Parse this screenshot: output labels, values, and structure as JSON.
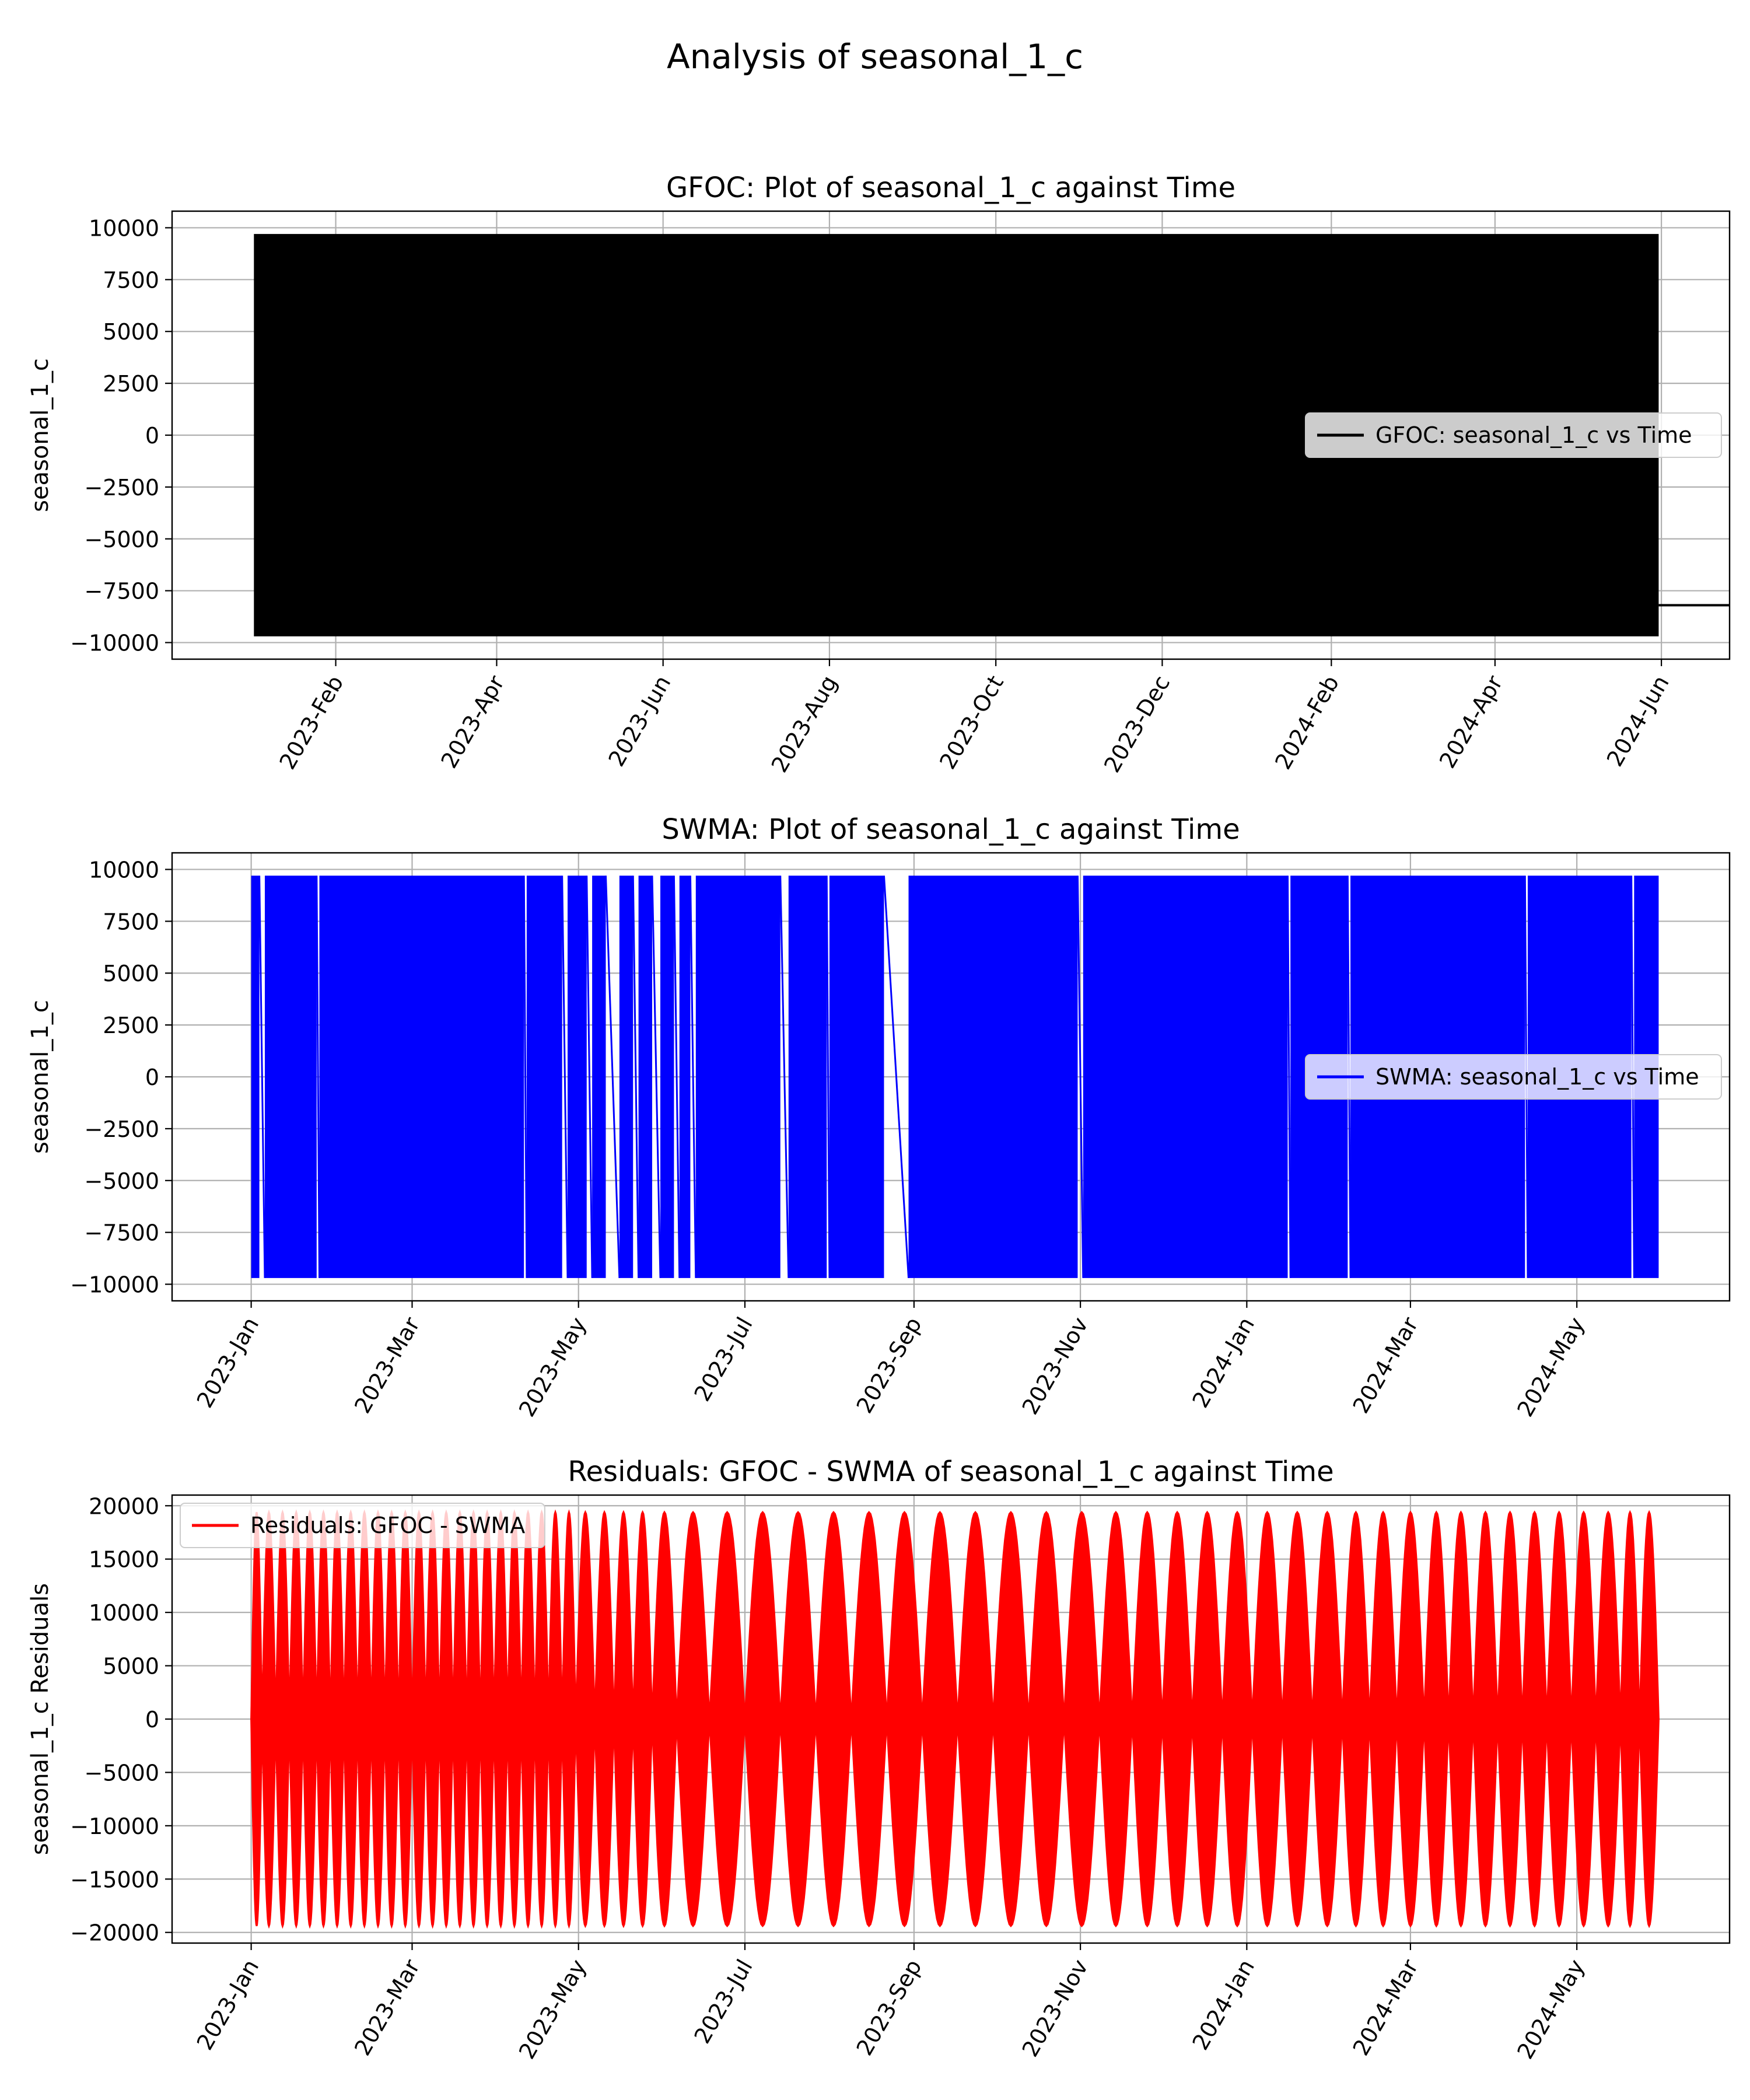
{
  "figure": {
    "title": "Analysis of seasonal_1_c"
  },
  "chart_data": [
    {
      "type": "line",
      "title": "GFOC: Plot of seasonal_1_c against Time",
      "xlabel": "",
      "ylabel": "seasonal_1_c",
      "ylim": [
        -10800,
        10800
      ],
      "xlim": [
        "2022-12-03",
        "2024-06-26"
      ],
      "grid": true,
      "legend": "center-right",
      "color": "#000000",
      "series": [
        {
          "name": "GFOC: seasonal_1_c vs Time",
          "envelope": {
            "x_start": "2023-01-02",
            "x_end": "2024-05-31",
            "ymin": -9700,
            "ymax": 9700
          },
          "tail": {
            "x": [
              "2024-05-31",
              "2024-06-30"
            ],
            "y": [
              -8200,
              -8200
            ]
          }
        }
      ],
      "x_ticks": [
        "2023-Feb",
        "2023-Apr",
        "2023-Jun",
        "2023-Aug",
        "2023-Oct",
        "2023-Dec",
        "2024-Feb",
        "2024-Apr",
        "2024-Jun"
      ],
      "x_tick_dates": [
        "2023-02-01",
        "2023-04-01",
        "2023-06-01",
        "2023-08-01",
        "2023-10-01",
        "2023-12-01",
        "2024-02-01",
        "2024-04-01",
        "2024-06-01"
      ],
      "y_ticks": [
        "10000",
        "7500",
        "5000",
        "2500",
        "0",
        "−2500",
        "−5000",
        "−7500",
        "−10000"
      ],
      "y_tick_values": [
        10000,
        7500,
        5000,
        2500,
        0,
        -2500,
        -5000,
        -7500,
        -10000
      ]
    },
    {
      "type": "line",
      "title": "SWMA: Plot of seasonal_1_c against Time",
      "xlabel": "",
      "ylabel": "seasonal_1_c",
      "ylim": [
        -10800,
        10800
      ],
      "xlim": [
        "2022-12-03",
        "2024-06-26"
      ],
      "grid": true,
      "legend": "center-right",
      "color": "#0000ff",
      "series": [
        {
          "name": "SWMA: seasonal_1_c vs Time",
          "bands": [
            [
              "2023-01-01",
              "2023-01-04"
            ],
            [
              "2023-01-06",
              "2023-01-25"
            ],
            [
              "2023-01-26",
              "2023-04-11"
            ],
            [
              "2023-04-12",
              "2023-04-25"
            ],
            [
              "2023-04-27",
              "2023-05-04"
            ],
            [
              "2023-05-06",
              "2023-05-11"
            ],
            [
              "2023-05-16",
              "2023-05-21"
            ],
            [
              "2023-05-23",
              "2023-05-28"
            ],
            [
              "2023-05-31",
              "2023-06-05"
            ],
            [
              "2023-06-07",
              "2023-06-11"
            ],
            [
              "2023-06-13",
              "2023-07-14"
            ],
            [
              "2023-07-17",
              "2023-07-31"
            ],
            [
              "2023-08-01",
              "2023-08-21"
            ],
            [
              "2023-08-30",
              "2023-10-31"
            ],
            [
              "2023-11-02",
              "2024-01-16"
            ],
            [
              "2024-01-17",
              "2024-02-07"
            ],
            [
              "2024-02-08",
              "2024-04-12"
            ],
            [
              "2024-04-13",
              "2024-05-21"
            ],
            [
              "2024-05-22",
              "2024-05-31"
            ]
          ],
          "ymin": -9700,
          "ymax": 9700
        }
      ],
      "x_ticks": [
        "2023-Jan",
        "2023-Mar",
        "2023-May",
        "2023-Jul",
        "2023-Sep",
        "2023-Nov",
        "2024-Jan",
        "2024-Mar",
        "2024-May"
      ],
      "x_tick_dates": [
        "2023-01-01",
        "2023-03-01",
        "2023-05-01",
        "2023-07-01",
        "2023-09-01",
        "2023-11-01",
        "2024-01-01",
        "2024-03-01",
        "2024-05-01"
      ],
      "y_ticks": [
        "10000",
        "7500",
        "5000",
        "2500",
        "0",
        "−2500",
        "−5000",
        "−7500",
        "−10000"
      ],
      "y_tick_values": [
        10000,
        7500,
        5000,
        2500,
        0,
        -2500,
        -5000,
        -7500,
        -10000
      ]
    },
    {
      "type": "line",
      "title": "Residuals: GFOC - SWMA of seasonal_1_c against Time",
      "xlabel": "",
      "ylabel": "seasonal_1_c Residuals",
      "ylim": [
        -21000,
        21000
      ],
      "xlim": [
        "2022-12-03",
        "2024-06-26"
      ],
      "grid": true,
      "legend": "upper-left",
      "color": "#ff0000",
      "series": [
        {
          "name": "Residuals: GFOC - SWMA",
          "amplitude": 19400,
          "beat_nodes": [
            "2023-01-01",
            "2023-01-05",
            "2023-01-10",
            "2023-01-15",
            "2023-01-20",
            "2023-01-25",
            "2023-01-30",
            "2023-02-04",
            "2023-02-09",
            "2023-02-14",
            "2023-02-19",
            "2023-02-24",
            "2023-03-01",
            "2023-03-06",
            "2023-03-11",
            "2023-03-16",
            "2023-03-21",
            "2023-03-26",
            "2023-03-31",
            "2023-04-05",
            "2023-04-10",
            "2023-04-15",
            "2023-04-20",
            "2023-04-25",
            "2023-04-30",
            "2023-05-07",
            "2023-05-14",
            "2023-05-21",
            "2023-05-28",
            "2023-06-06",
            "2023-06-18",
            "2023-07-01",
            "2023-07-14",
            "2023-07-27",
            "2023-08-09",
            "2023-08-22",
            "2023-09-04",
            "2023-09-17",
            "2023-09-30",
            "2023-10-13",
            "2023-10-26",
            "2023-11-08",
            "2023-11-20",
            "2023-12-01",
            "2023-12-12",
            "2023-12-23",
            "2024-01-03",
            "2024-01-14",
            "2024-01-25",
            "2024-02-05",
            "2024-02-15",
            "2024-02-25",
            "2024-03-06",
            "2024-03-15",
            "2024-03-24",
            "2024-04-02",
            "2024-04-11",
            "2024-04-20",
            "2024-04-29",
            "2024-05-08",
            "2024-05-17",
            "2024-05-24",
            "2024-05-31"
          ]
        }
      ],
      "x_ticks": [
        "2023-Jan",
        "2023-Mar",
        "2023-May",
        "2023-Jul",
        "2023-Sep",
        "2023-Nov",
        "2024-Jan",
        "2024-Mar",
        "2024-May"
      ],
      "x_tick_dates": [
        "2023-01-01",
        "2023-03-01",
        "2023-05-01",
        "2023-07-01",
        "2023-09-01",
        "2023-11-01",
        "2024-01-01",
        "2024-03-01",
        "2024-05-01"
      ],
      "y_ticks": [
        "20000",
        "15000",
        "10000",
        "5000",
        "0",
        "−5000",
        "−10000",
        "−15000",
        "−20000"
      ],
      "y_tick_values": [
        20000,
        15000,
        10000,
        5000,
        0,
        -5000,
        -10000,
        -15000,
        -20000
      ]
    }
  ]
}
